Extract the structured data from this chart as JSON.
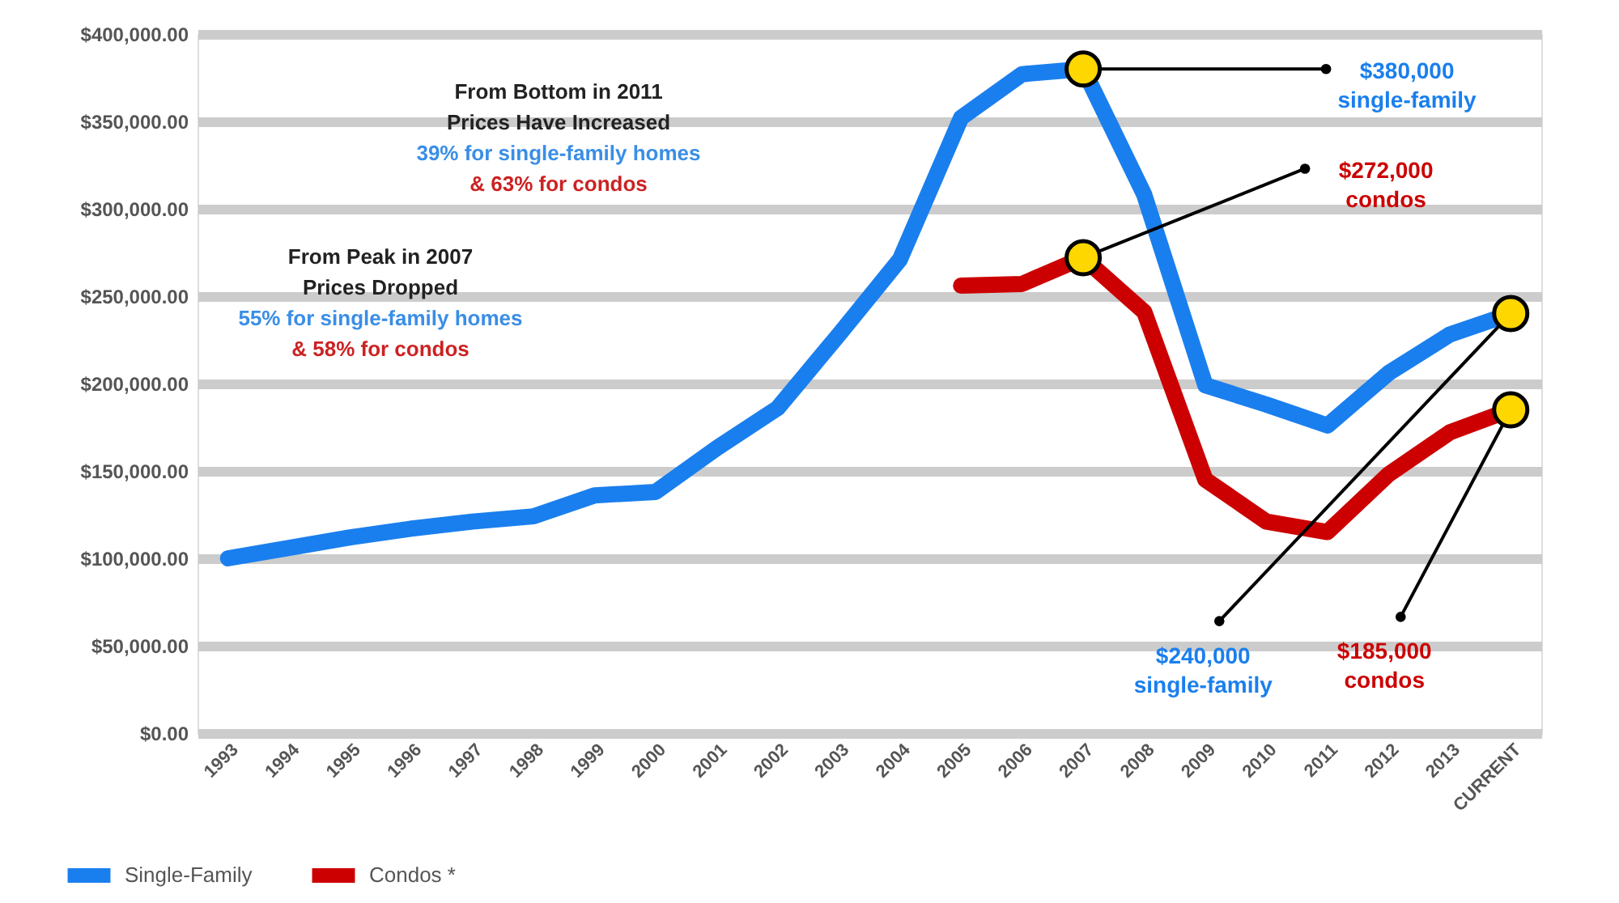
{
  "chart_data": {
    "type": "line",
    "categories": [
      "1993",
      "1994",
      "1995",
      "1996",
      "1997",
      "1998",
      "1999",
      "2000",
      "2001",
      "2002",
      "2003",
      "2004",
      "2005",
      "2006",
      "2007",
      "2008",
      "2009",
      "2010",
      "2011",
      "2012",
      "2013",
      "CURRENT"
    ],
    "series": [
      {
        "name": "Single-Family",
        "color": "#1a7fee",
        "values": [
          100000,
          106000,
          112000,
          117000,
          121000,
          124000,
          136000,
          138000,
          163000,
          186000,
          228000,
          271000,
          352000,
          377000,
          380000,
          308000,
          199000,
          188000,
          176000,
          206000,
          228000,
          240000
        ]
      },
      {
        "name": "Condos *",
        "color": "#cc0000",
        "values": [
          null,
          null,
          null,
          null,
          null,
          null,
          null,
          null,
          null,
          null,
          null,
          null,
          256000,
          257000,
          272000,
          241000,
          145000,
          121000,
          115000,
          148000,
          172000,
          185000
        ]
      }
    ],
    "ylim": [
      0,
      400000
    ],
    "yticks": [
      {
        "value": 0,
        "label": "$0.00"
      },
      {
        "value": 50000,
        "label": "$50,000.00"
      },
      {
        "value": 100000,
        "label": "$100,000.00"
      },
      {
        "value": 150000,
        "label": "$150,000.00"
      },
      {
        "value": 200000,
        "label": "$200,000.00"
      },
      {
        "value": 250000,
        "label": "$250,000.00"
      },
      {
        "value": 300000,
        "label": "$300,000.00"
      },
      {
        "value": 350000,
        "label": "$350,000.00"
      },
      {
        "value": 400000,
        "label": "$400,000.00"
      }
    ],
    "grid": "y",
    "legend": "bottom",
    "line_style": "solid",
    "annotations": [
      "$380,000\nsingle-family",
      "$272,000\ncondos",
      "$240,000\nsingle-family",
      "$185,000\ncondos",
      "From Bottom in 2011\nPrices Have Increased\n39% for single-family homes\n& 63% for condos",
      "From Peak in 2007\nPrices Dropped\n55% for single-family homes\n& 58% for condos"
    ]
  }
}
